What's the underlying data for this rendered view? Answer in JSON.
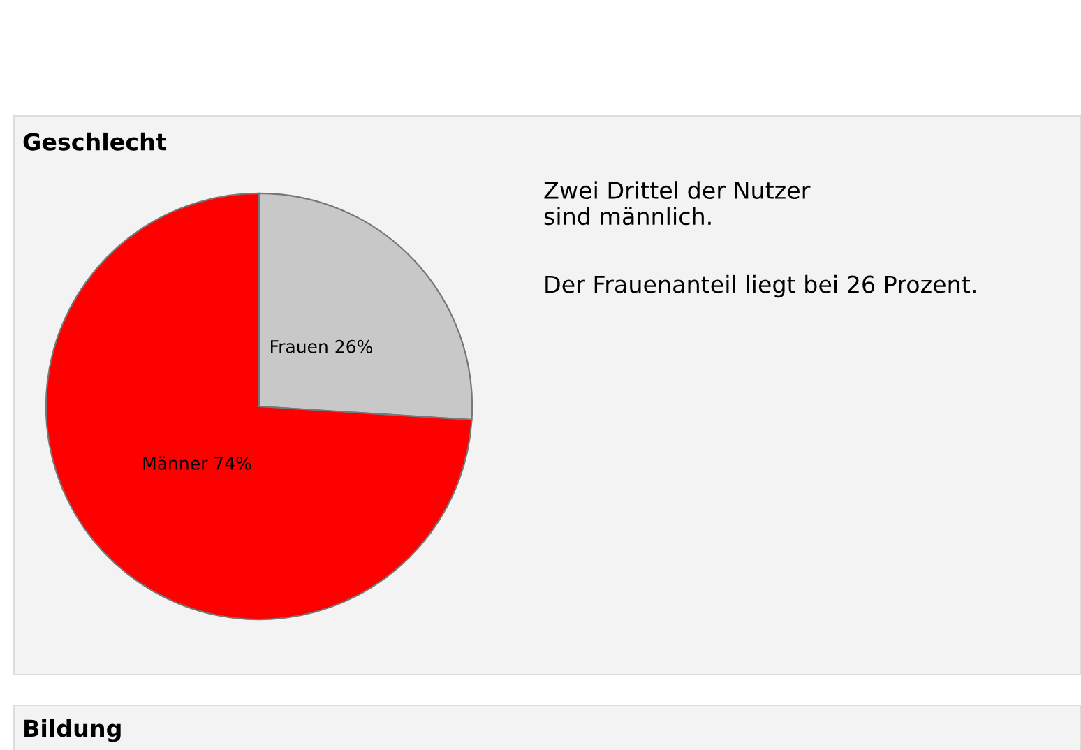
{
  "chart_data": {
    "type": "pie",
    "title": "Geschlecht",
    "categories": [
      "Frauen",
      "Männer"
    ],
    "values": [
      26,
      74
    ],
    "value_labels": [
      "26%",
      "74%"
    ],
    "colors": [
      "#c8c8c8",
      "#ff0000"
    ],
    "annotations": [
      "Zwei Drittel der Nutzer\nsind männlich.",
      "Der Frauenanteil liegt bei 26 Prozent.",
      "Bildung"
    ]
  }
}
